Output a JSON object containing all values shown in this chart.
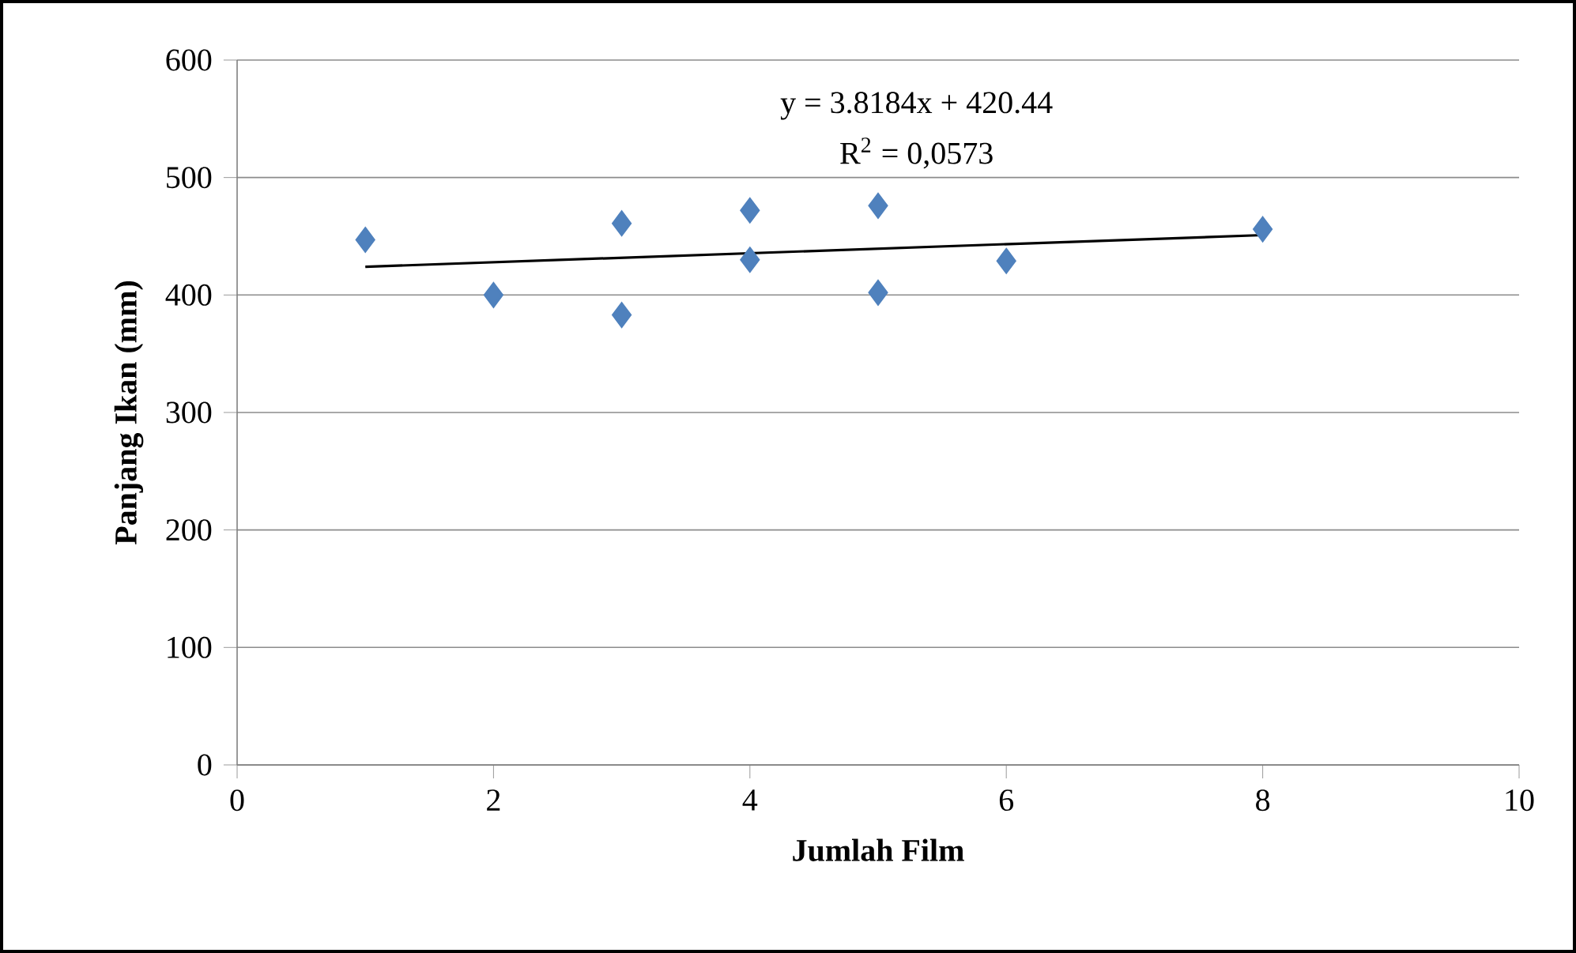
{
  "chart_data": {
    "type": "scatter",
    "xlabel": "Jumlah Film",
    "ylabel": "Panjang Ikan (mm)",
    "xlim": [
      0,
      10
    ],
    "xticks": [
      0,
      2,
      4,
      6,
      8,
      10
    ],
    "ylim": [
      0,
      600
    ],
    "yticks": [
      0,
      100,
      200,
      300,
      400,
      500,
      600
    ],
    "grid": "y",
    "marker": "diamond",
    "series": [
      {
        "color": "#4f81bd",
        "x": [
          1,
          2,
          3,
          3,
          4,
          4,
          5,
          5,
          6,
          8
        ],
        "values": [
          447,
          400,
          461,
          383,
          472,
          430,
          476,
          402,
          429,
          456
        ]
      },
      {
        "type": "line",
        "color": "#000000",
        "marker": "none",
        "line_style": "solid",
        "x": [
          1,
          8
        ],
        "values": [
          424,
          451
        ]
      }
    ],
    "annotations": [
      "y = 3.8184x + 420.44",
      "R$^{2}$ = 0,0573"
    ]
  }
}
